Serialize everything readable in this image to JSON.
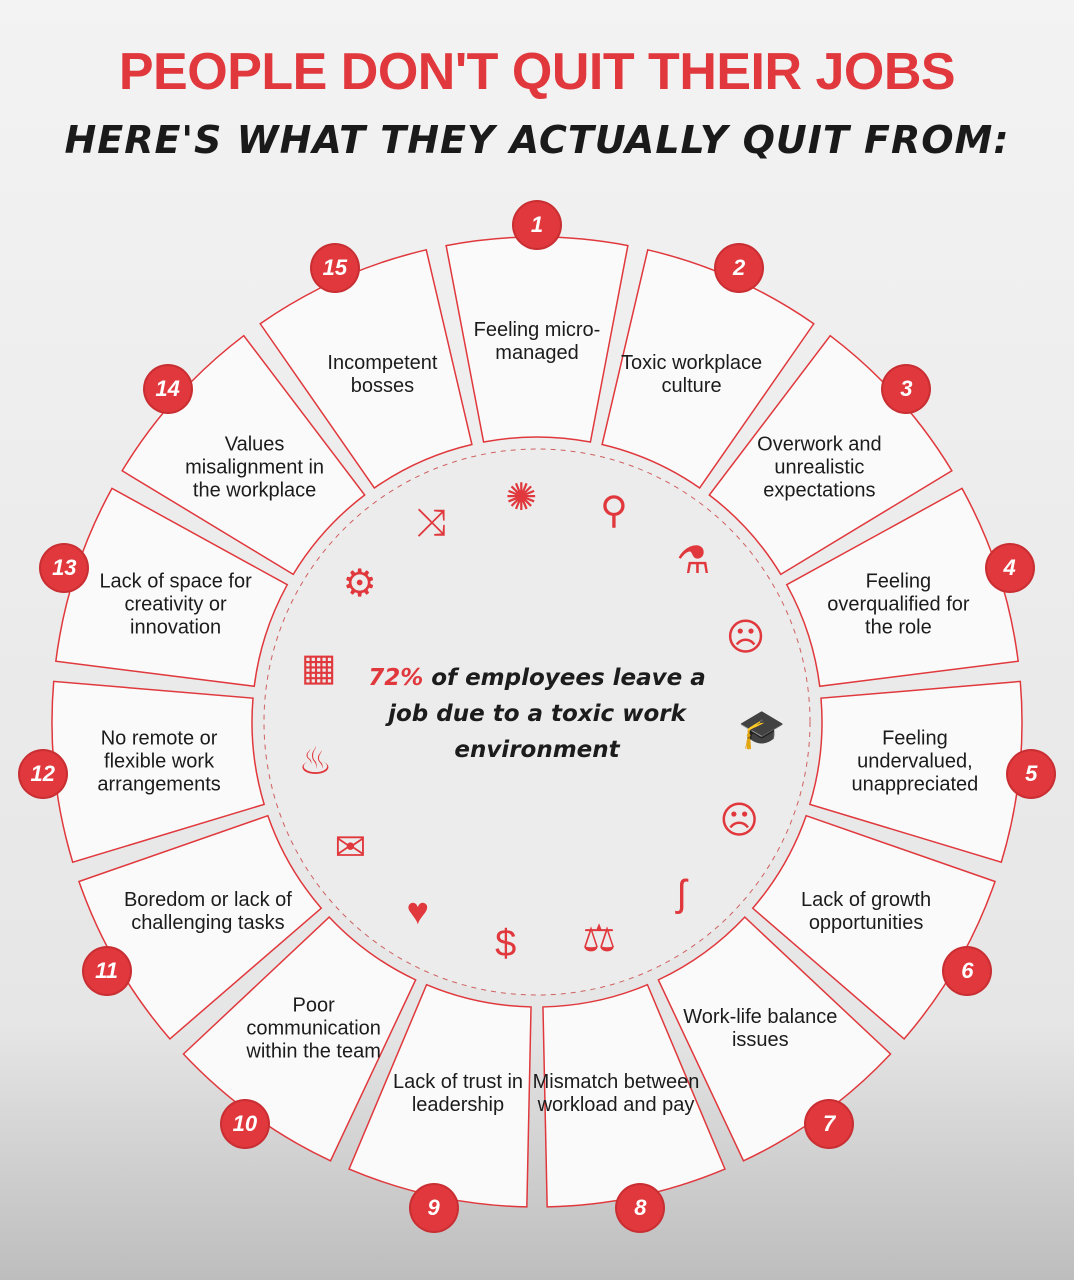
{
  "title": "PEOPLE DON'T QUIT THEIR JOBS",
  "subtitle": "HERE'S WHAT THEY ACTUALLY QUIT FROM:",
  "accent_color": "#e0383c",
  "center": {
    "percent": "72%",
    "text": " of employees leave a job due to a toxic work environment"
  },
  "items": [
    {
      "number": "1",
      "label": "Feeling micro-managed"
    },
    {
      "number": "2",
      "label": "Toxic workplace culture"
    },
    {
      "number": "3",
      "label": "Overwork and unrealistic expectations"
    },
    {
      "number": "4",
      "label": "Feeling overqualified for the role"
    },
    {
      "number": "5",
      "label": "Feeling undervalued, unappreciated"
    },
    {
      "number": "6",
      "label": "Lack of growth opportunities"
    },
    {
      "number": "7",
      "label": "Work-life balance issues"
    },
    {
      "number": "8",
      "label": "Mismatch between workload and pay"
    },
    {
      "number": "9",
      "label": "Lack of trust in leadership"
    },
    {
      "number": "10",
      "label": "Poor communication within the team"
    },
    {
      "number": "11",
      "label": "Boredom or lack of challenging tasks"
    },
    {
      "number": "12",
      "label": "No remote or flexible work arrangements"
    },
    {
      "number": "13",
      "label": "Lack of space for creativity or innovation"
    },
    {
      "number": "14",
      "label": "Values misalignment in the workplace"
    },
    {
      "number": "15",
      "label": "Incompetent bosses"
    }
  ],
  "center_icons": [
    "magnifier-icon",
    "flask-icon",
    "headache-icon",
    "graduation-cap-icon",
    "sad-search-icon",
    "hook-icon",
    "scales-icon",
    "money-bag-icon",
    "broken-heart-icon",
    "broken-speech-icon",
    "flame-icon",
    "calendar-icon",
    "gears-icon",
    "shuffle-icon",
    "loading-icon"
  ]
}
